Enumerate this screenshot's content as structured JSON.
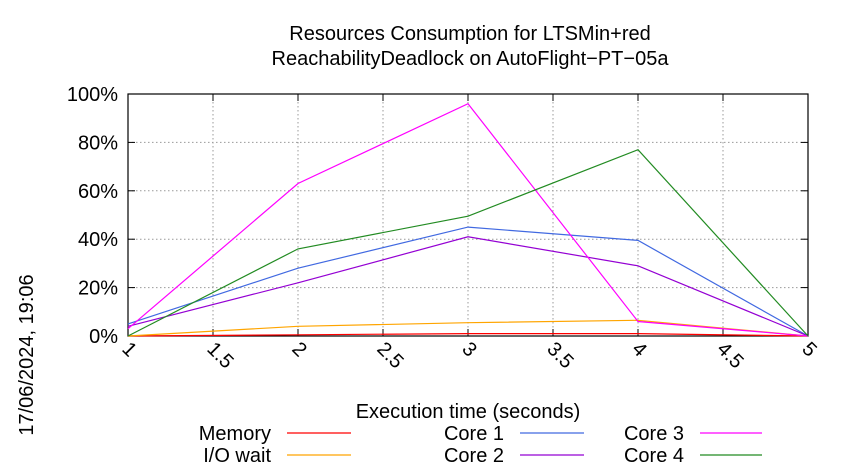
{
  "chart_data": {
    "type": "line",
    "title": "Resources Consumption for LTSMin+red",
    "subtitle": "ReachabilityDeadlock on AutoFlight−PT−05a",
    "xlabel": "Execution time (seconds)",
    "ylabel": "",
    "timestamp": "17/06/2024, 19:06",
    "xlim": [
      1,
      5
    ],
    "ylim": [
      0,
      100
    ],
    "x_ticks": [
      "1",
      "1.5",
      "2",
      "2.5",
      "3",
      "3.5",
      "4",
      "4.5",
      "5"
    ],
    "y_ticks": [
      "0%",
      "20%",
      "40%",
      "60%",
      "80%",
      "100%"
    ],
    "grid": true,
    "legend_position": "bottom",
    "series": [
      {
        "name": "Memory",
        "color": "#ff0000",
        "x": [
          1,
          2,
          3,
          4,
          5
        ],
        "values": [
          0,
          0.5,
          1,
          1,
          0
        ]
      },
      {
        "name": "I/O wait",
        "color": "#ffa500",
        "x": [
          1,
          2,
          3,
          4,
          5
        ],
        "values": [
          0,
          4,
          5.5,
          6.5,
          0
        ]
      },
      {
        "name": "Core 1",
        "color": "#4169e1",
        "x": [
          1,
          2,
          3,
          4,
          5
        ],
        "values": [
          5,
          28,
          45,
          39.5,
          0
        ]
      },
      {
        "name": "Core 2",
        "color": "#9400d3",
        "x": [
          1,
          2,
          3,
          4,
          5
        ],
        "values": [
          4,
          22,
          41,
          29,
          0
        ]
      },
      {
        "name": "Core 3",
        "color": "#ff00ff",
        "x": [
          1,
          2,
          3,
          4,
          5
        ],
        "values": [
          3,
          63,
          96,
          6,
          0
        ]
      },
      {
        "name": "Core 4",
        "color": "#228b22",
        "x": [
          1,
          2,
          3,
          4,
          5
        ],
        "values": [
          0,
          36,
          49.5,
          77,
          0
        ]
      }
    ]
  }
}
